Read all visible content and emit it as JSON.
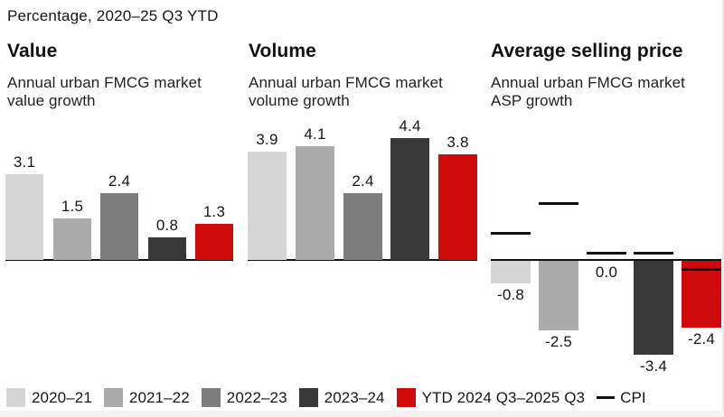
{
  "kicker": "Percentage, 2020–25 Q3 YTD",
  "chart_data": [
    {
      "type": "bar",
      "title": "Value",
      "subtitle": "Annual urban FMCG market value growth",
      "categories": [
        "2020–21",
        "2021–22",
        "2022–23",
        "2023–24",
        "YTD 2024 Q3–2025 Q3"
      ],
      "values": [
        3.1,
        1.5,
        2.4,
        0.8,
        1.3
      ],
      "unit": "%",
      "data_labels": true,
      "ylim": [
        0,
        4.5
      ],
      "grid": false,
      "legend_position": "bottom"
    },
    {
      "type": "bar",
      "title": "Volume",
      "subtitle": "Annual urban FMCG market volume growth",
      "categories": [
        "2020–21",
        "2021–22",
        "2022–23",
        "2023–24",
        "YTD 2024 Q3–2025 Q3"
      ],
      "values": [
        3.9,
        4.1,
        2.4,
        4.4,
        3.8
      ],
      "unit": "%",
      "data_labels": true,
      "ylim": [
        0,
        4.8
      ],
      "grid": false,
      "legend_position": "bottom"
    },
    {
      "type": "bar",
      "title": "Average selling price",
      "subtitle": "Annual urban FMCG market ASP growth",
      "categories": [
        "2020–21",
        "2021–22",
        "2022–23",
        "2023–24",
        "YTD 2024 Q3–2025 Q3"
      ],
      "values": [
        -0.8,
        -2.5,
        0.0,
        -3.4,
        -2.4
      ],
      "unit": "%",
      "data_labels": true,
      "ylim": [
        -3.6,
        2.2
      ],
      "grid": false,
      "legend_position": "bottom",
      "cpi_markers": {
        "name": "CPI",
        "values": [
          0.9,
          2.0,
          0.2,
          0.2,
          -0.4
        ],
        "estimated_from_marker_positions": true
      }
    }
  ],
  "legend": {
    "items": [
      {
        "label": "2020–21",
        "color": "#d6d6d6"
      },
      {
        "label": "2021–22",
        "color": "#ababab"
      },
      {
        "label": "2022–23",
        "color": "#7d7d7d"
      },
      {
        "label": "2023–24",
        "color": "#383838"
      },
      {
        "label": "YTD 2024 Q3–2025 Q3",
        "color": "#cf0a0a"
      }
    ],
    "cpi": {
      "label": "CPI",
      "color": "#111111"
    }
  },
  "colors": {
    "series_palette": [
      "#d6d6d6",
      "#ababab",
      "#7d7d7d",
      "#383838",
      "#cf0a0a"
    ],
    "cpi_line": "#111111",
    "axis_line": "#111111",
    "text": "#161616",
    "background": "#ffffff"
  }
}
